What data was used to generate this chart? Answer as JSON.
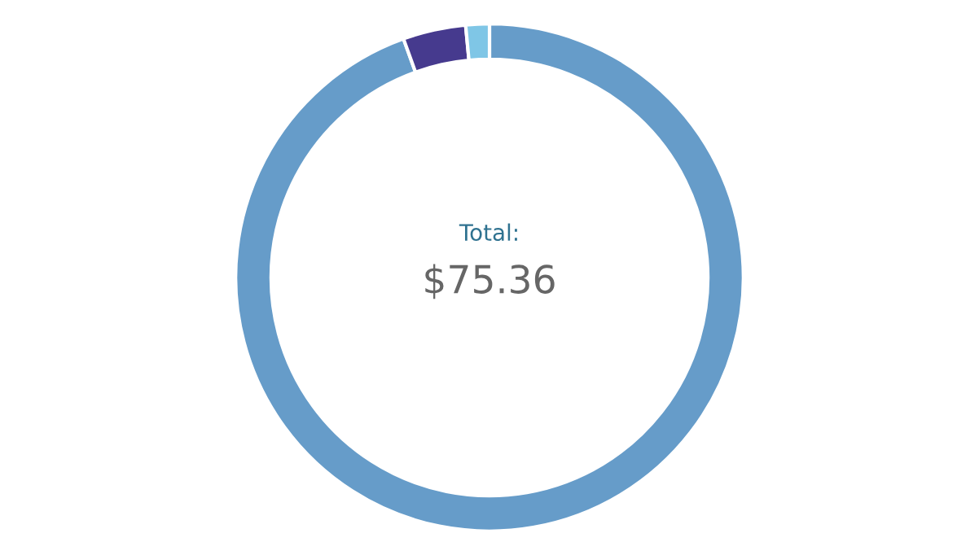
{
  "chart_data": {
    "type": "donut",
    "categories": [
      null,
      null,
      null
    ],
    "values": [
      94.5,
      4.0,
      1.5
    ],
    "colors": [
      "#669cc9",
      "#463a8e",
      "#7fc6e6"
    ],
    "annotations": [
      "Total:",
      "$75.36"
    ]
  }
}
